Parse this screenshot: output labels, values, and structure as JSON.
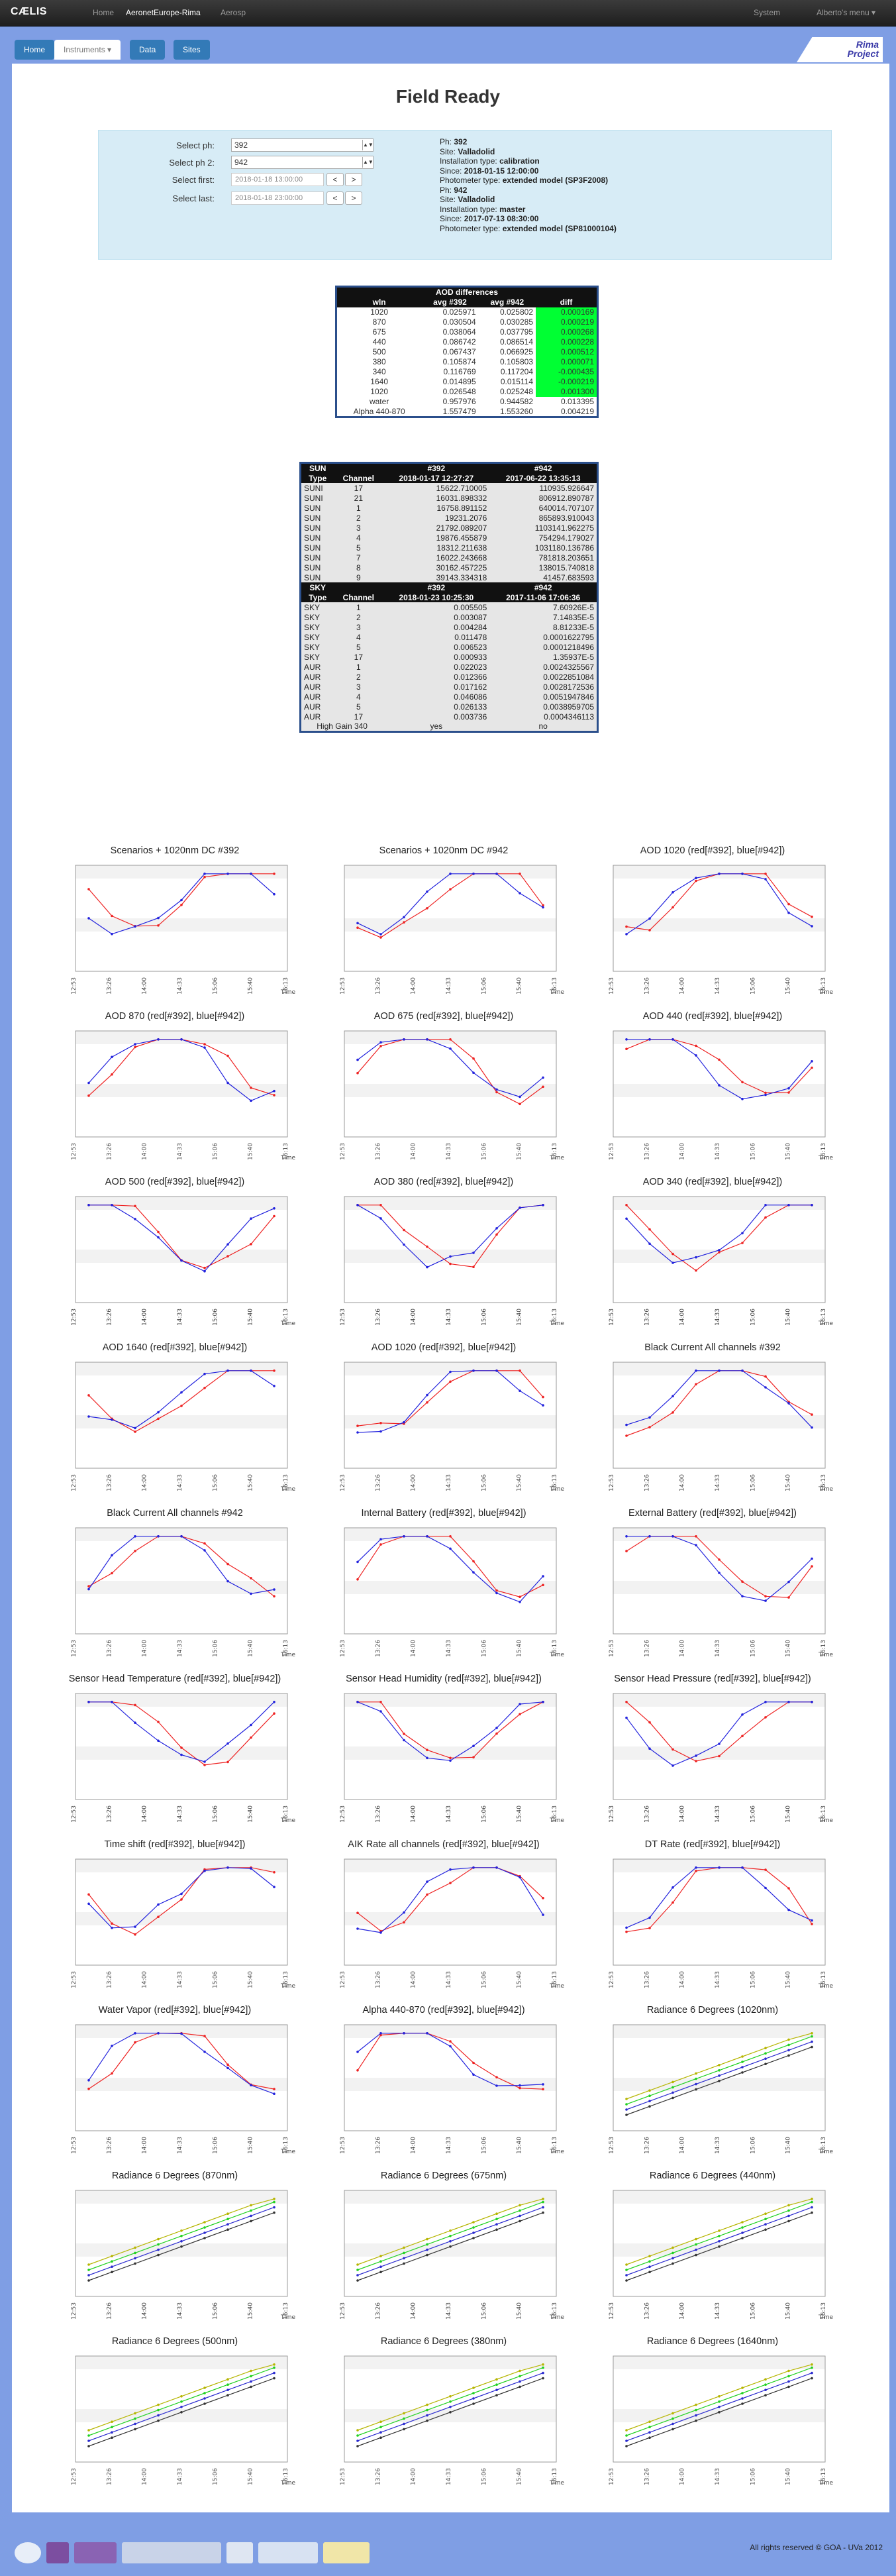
{
  "navbar": {
    "brand": "CÆLIS",
    "links": [
      "Home",
      "AeronetEurope-Rima",
      "Aerosp"
    ],
    "right_links": [
      "System",
      "Alberto's menu ▾"
    ]
  },
  "subtabs": {
    "home": "Home",
    "instruments": "Instruments ▾",
    "data": "Data",
    "sites": "Sites"
  },
  "rima": {
    "line1": "Rima",
    "line2": "Project"
  },
  "page": {
    "title": "Field Ready"
  },
  "selection": {
    "ph_label": "Select ph:",
    "ph_value": "392",
    "ph2_label": "Select ph 2:",
    "ph2_value": "942",
    "first_label": "Select first:",
    "first_value": "2018-01-18 13:00:00",
    "last_label": "Select last:",
    "last_value": "2018-01-18 23:00:00",
    "prev": "<",
    "next": ">"
  },
  "info": {
    "ph1": {
      "ph": "392",
      "site": "Valladolid",
      "installation": "calibration",
      "since": "2018-01-15 12:00:00",
      "model": "extended model (SP3F2008)"
    },
    "ph2": {
      "ph": "942",
      "site": "Valladolid",
      "installation": "master",
      "since": "2017-07-13 08:30:00",
      "model": "extended model (SP81000104)"
    },
    "labels": {
      "ph": "Ph:",
      "site": "Site:",
      "installation": "Installation type:",
      "since": "Since:",
      "model": "Photometer type:"
    }
  },
  "aod_table": {
    "caption": "AOD differences",
    "headers": [
      "wln",
      "avg #392",
      "avg #942",
      "diff"
    ],
    "rows": [
      [
        "1020",
        "0.025971",
        "0.025802",
        "0.000169"
      ],
      [
        "870",
        "0.030504",
        "0.030285",
        "0.000219"
      ],
      [
        "675",
        "0.038064",
        "0.037795",
        "0.000268"
      ],
      [
        "440",
        "0.086742",
        "0.086514",
        "0.000228"
      ],
      [
        "500",
        "0.067437",
        "0.066925",
        "0.000512"
      ],
      [
        "380",
        "0.105874",
        "0.105803",
        "0.000071"
      ],
      [
        "340",
        "0.116769",
        "0.117204",
        "-0.000435"
      ],
      [
        "1640",
        "0.014895",
        "0.015114",
        "-0.000219"
      ],
      [
        "1020",
        "0.026548",
        "0.025248",
        "0.001300"
      ],
      [
        "water",
        "0.957976",
        "0.944582",
        "0.013395"
      ],
      [
        "Alpha 440-870",
        "1.557479",
        "1.553260",
        "0.004219"
      ]
    ]
  },
  "sun_table": {
    "sun_header": [
      "SUN",
      "",
      "#392",
      "#942"
    ],
    "sun_sub": [
      "Type",
      "Channel",
      "2018-01-17 12:27:27",
      "2017-06-22 13:35:13"
    ],
    "sun_rows": [
      [
        "SUNI",
        "17",
        "15622.710005",
        "110935.926647"
      ],
      [
        "SUNI",
        "21",
        "16031.898332",
        "806912.890787"
      ],
      [
        "SUN",
        "1",
        "16758.891152",
        "640014.707107"
      ],
      [
        "SUN",
        "2",
        "19231.2076",
        "865893.910043"
      ],
      [
        "SUN",
        "3",
        "21792.089207",
        "1103141.962275"
      ],
      [
        "SUN",
        "4",
        "19876.455879",
        "754294.179027"
      ],
      [
        "SUN",
        "5",
        "18312.211638",
        "1031180.136786"
      ],
      [
        "SUN",
        "7",
        "16022.243668",
        "781818.203651"
      ],
      [
        "SUN",
        "8",
        "30162.457225",
        "138015.740818"
      ],
      [
        "SUN",
        "9",
        "39143.334318",
        "41457.683593"
      ]
    ],
    "sky_header": [
      "SKY",
      "",
      "#392",
      "#942"
    ],
    "sky_sub": [
      "Type",
      "Channel",
      "2018-01-23 10:25:30",
      "2017-11-06 17:06:36"
    ],
    "sky_rows": [
      [
        "SKY",
        "1",
        "0.005505",
        "7.60926E-5"
      ],
      [
        "SKY",
        "2",
        "0.003087",
        "7.14835E-5"
      ],
      [
        "SKY",
        "3",
        "0.004284",
        "8.81233E-5"
      ],
      [
        "SKY",
        "4",
        "0.011478",
        "0.0001622795"
      ],
      [
        "SKY",
        "5",
        "0.006523",
        "0.0001218496"
      ],
      [
        "SKY",
        "17",
        "0.000933",
        "1.35937E-5"
      ],
      [
        "AUR",
        "1",
        "0.022023",
        "0.0024325567"
      ],
      [
        "AUR",
        "2",
        "0.012366",
        "0.0022851084"
      ],
      [
        "AUR",
        "3",
        "0.017162",
        "0.0028172536"
      ],
      [
        "AUR",
        "4",
        "0.046086",
        "0.0051947846"
      ],
      [
        "AUR",
        "5",
        "0.026133",
        "0.0038959705"
      ],
      [
        "AUR",
        "17",
        "0.003736",
        "0.0004346113"
      ]
    ],
    "gain_row": [
      "High Gain 340",
      "yes",
      "no"
    ]
  },
  "charts": [
    {
      "title": "Scenarios + 1020nm DC #392"
    },
    {
      "title": "Scenarios + 1020nm DC #942"
    },
    {
      "title": "AOD 1020 (red[#392], blue[#942])"
    },
    {
      "title": "AOD 870 (red[#392], blue[#942])"
    },
    {
      "title": "AOD 675 (red[#392], blue[#942])"
    },
    {
      "title": "AOD 440 (red[#392], blue[#942])"
    },
    {
      "title": "AOD 500 (red[#392], blue[#942])"
    },
    {
      "title": "AOD 380 (red[#392], blue[#942])"
    },
    {
      "title": "AOD 340 (red[#392], blue[#942])"
    },
    {
      "title": "AOD 1640 (red[#392], blue[#942])"
    },
    {
      "title": "AOD 1020 (red[#392], blue[#942])"
    },
    {
      "title": "Black Current All channels #392"
    },
    {
      "title": "Black Current All channels #942"
    },
    {
      "title": "Internal Battery (red[#392], blue[#942])"
    },
    {
      "title": "External Battery (red[#392], blue[#942])"
    },
    {
      "title": "Sensor Head Temperature (red[#392], blue[#942])"
    },
    {
      "title": "Sensor Head Humidity (red[#392], blue[#942])"
    },
    {
      "title": "Sensor Head Pressure (red[#392], blue[#942])"
    },
    {
      "title": "Time shift (red[#392], blue[#942])"
    },
    {
      "title": "AIK Rate all channels (red[#392], blue[#942])"
    },
    {
      "title": "DT Rate (red[#392], blue[#942])"
    },
    {
      "title": "Water Vapor (red[#392], blue[#942])"
    },
    {
      "title": "Alpha 440-870 (red[#392], blue[#942])"
    },
    {
      "title": "Radiance 6 Degrees (1020nm)"
    },
    {
      "title": "Radiance 6 Degrees (870nm)"
    },
    {
      "title": "Radiance 6 Degrees (675nm)"
    },
    {
      "title": "Radiance 6 Degrees (440nm)"
    },
    {
      "title": "Radiance 6 Degrees (500nm)"
    },
    {
      "title": "Radiance 6 Degrees (380nm)"
    },
    {
      "title": "Radiance 6 Degrees (1640nm)"
    }
  ],
  "chart_data": [
    {
      "type": "line",
      "title": "AOD 1020 (red[#392], blue[#942])",
      "x": [
        "12:53",
        "13:26",
        "14:00",
        "14:33",
        "15:06",
        "15:40",
        "16:13"
      ],
      "ylim": [
        0.024,
        0.03
      ],
      "series": [
        {
          "name": "#392",
          "values": [
            null,
            0.026,
            0.0265,
            0.028,
            0.025,
            0.0245,
            null
          ]
        },
        {
          "name": "#942",
          "values": [
            null,
            0.026,
            0.0263,
            0.0285,
            0.0252,
            0.0246,
            null
          ]
        }
      ]
    },
    {
      "type": "line",
      "title": "AOD 870 (red[#392], blue[#942])",
      "x": [
        "12:53",
        "13:26",
        "14:00",
        "14:33",
        "15:06",
        "15:40",
        "16:13"
      ],
      "ylim": [
        0.028,
        0.034
      ],
      "series": [
        {
          "name": "#392",
          "values": [
            null,
            0.0305,
            0.0312,
            0.0322,
            0.0295,
            0.029,
            null
          ]
        },
        {
          "name": "#942",
          "values": [
            null,
            0.031,
            0.031,
            0.0325,
            0.0296,
            0.0288,
            null
          ]
        }
      ]
    }
  ],
  "footer": {
    "copyright": "All rights reserved © GOA - UVa 2012",
    "logos": [
      "GOA",
      "UVa",
      "RIMA",
      "AERONET",
      "ACTRIS",
      "EU"
    ]
  }
}
